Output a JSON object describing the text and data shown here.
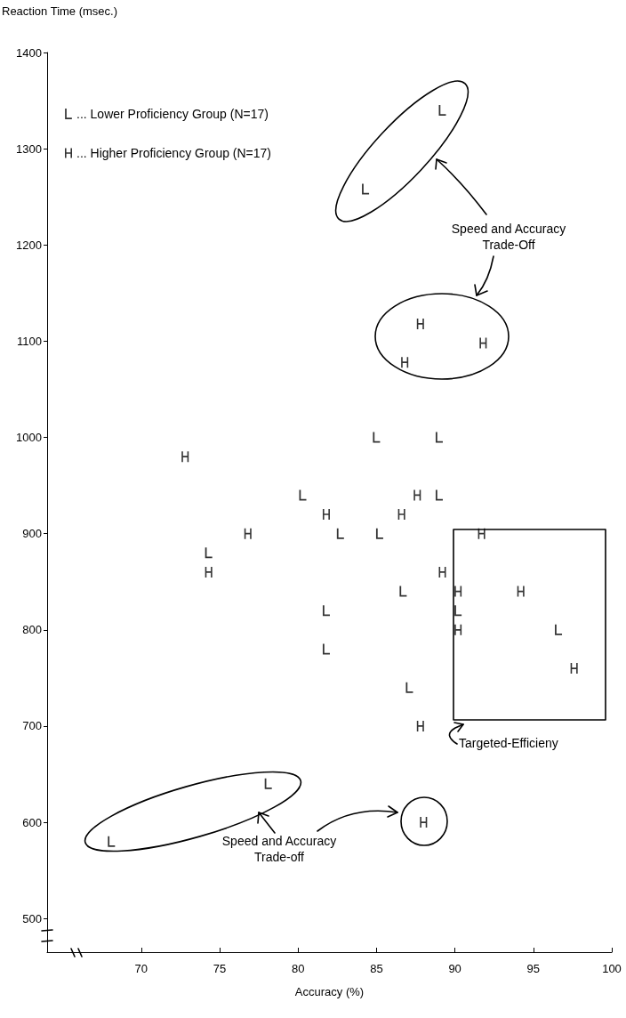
{
  "chart_data": {
    "type": "scatter",
    "ylabel": "Reaction Time (msec.)",
    "xlabel": "Accuracy (%)",
    "xlim": [
      64,
      100
    ],
    "xticks": [
      70,
      75,
      80,
      85,
      90,
      95,
      100
    ],
    "ylim": [
      465,
      1400
    ],
    "yticks": [
      500,
      600,
      700,
      800,
      900,
      1000,
      1100,
      1200,
      1300,
      1400
    ],
    "legend": "top left",
    "annotations": [
      "Speed and Accuracy\nTrade-Off",
      "Targeted-Efficieny",
      "Speed and Accuracy\nTrade-off"
    ],
    "series": [
      {
        "name": "... Lower Proficiency Group (N=17)",
        "color": "#000000",
        "x": [
          89.2,
          84.3,
          85,
          89,
          80.3,
          89,
          82.7,
          85.2,
          74.3,
          86.7,
          81.8,
          90.2,
          96.6,
          81.8,
          87.1,
          78.1,
          68.1
        ],
        "values": [
          1340,
          1258,
          1000,
          1000,
          940,
          940,
          900,
          900,
          880,
          840,
          820,
          820,
          800,
          780,
          740,
          640,
          580
        ]
      },
      {
        "name": "... Higher Proficiency Group (N=17)",
        "color": "#000000",
        "x": [
          87.8,
          91.8,
          86.8,
          72.8,
          87.6,
          81.8,
          86.6,
          76.8,
          91.7,
          74.3,
          89.2,
          90.2,
          94.2,
          90.2,
          97.6,
          87.8,
          88
        ],
        "values": [
          1118,
          1098,
          1078,
          980,
          940,
          920,
          920,
          900,
          900,
          860,
          860,
          840,
          840,
          800,
          760,
          700,
          600
        ]
      }
    ]
  }
}
